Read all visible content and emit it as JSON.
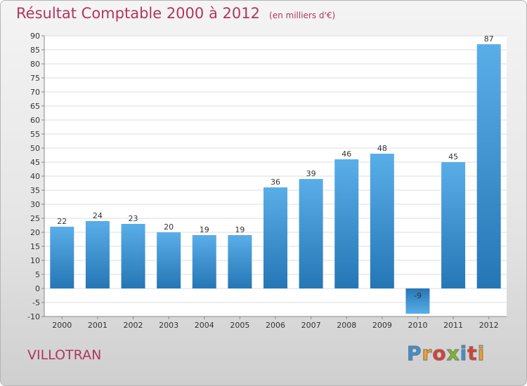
{
  "title": "Résultat Comptable 2000 à 2012",
  "subtitle": "(en milliers d'€)",
  "town": "VILLOTRAN",
  "logo": "Proxiti",
  "colors": {
    "accent": "#b0365e",
    "bar_top": "#5aaee8",
    "bar_bottom": "#2576b5"
  },
  "chart_data": {
    "type": "bar",
    "title": "Résultat Comptable 2000 à 2012",
    "subtitle": "(en milliers d'€)",
    "categories": [
      "2000",
      "2001",
      "2002",
      "2003",
      "2004",
      "2005",
      "2006",
      "2007",
      "2008",
      "2009",
      "2010",
      "2011",
      "2012"
    ],
    "values": [
      22,
      24,
      23,
      20,
      19,
      19,
      36,
      39,
      46,
      48,
      -9,
      45,
      87
    ],
    "value_labels": [
      "22",
      "24",
      "23",
      "20",
      "19",
      "19",
      "36",
      "39",
      "46",
      "48",
      "-9",
      "45",
      "87"
    ],
    "ylim": [
      -10,
      90
    ],
    "yticks": [
      -10,
      -5,
      0,
      5,
      10,
      15,
      20,
      25,
      30,
      35,
      40,
      45,
      50,
      55,
      60,
      65,
      70,
      75,
      80,
      85,
      90
    ],
    "grid": true,
    "legend": "none"
  }
}
